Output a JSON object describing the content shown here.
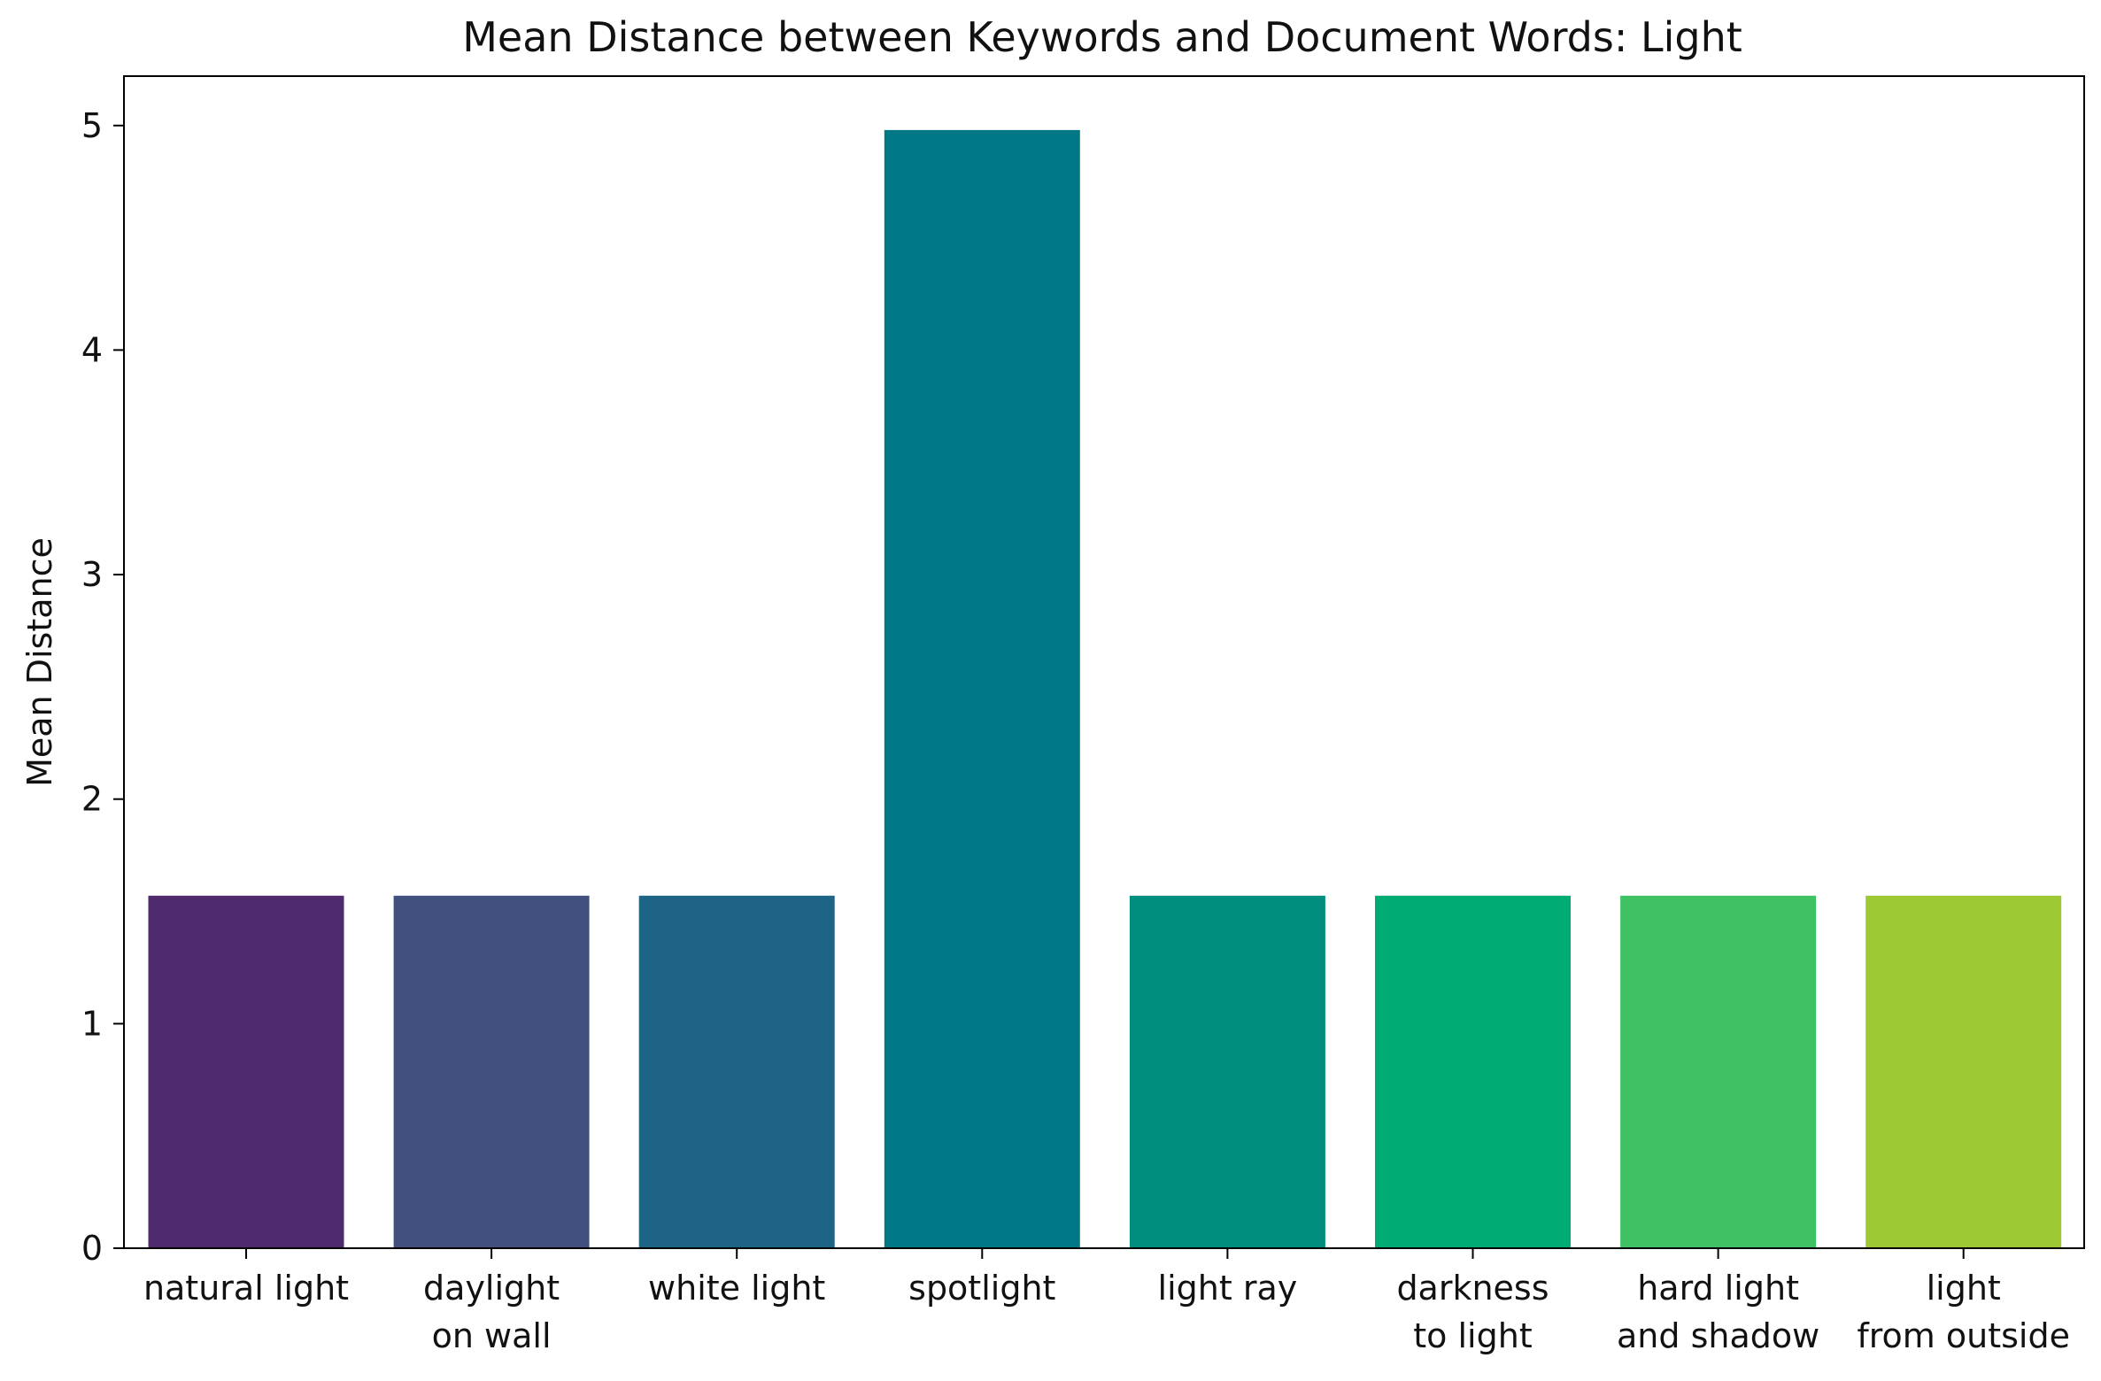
{
  "chart_data": {
    "type": "bar",
    "title": "Mean Distance between Keywords and Document Words: Light",
    "xlabel": "",
    "ylabel": "Mean Distance",
    "ylim": [
      0,
      5.22
    ],
    "yticks": [
      0,
      1,
      2,
      3,
      4,
      5
    ],
    "grid": false,
    "legend": "none",
    "categories": [
      [
        "natural light"
      ],
      [
        "daylight",
        "on wall"
      ],
      [
        "white light"
      ],
      [
        "spotlight"
      ],
      [
        "light ray"
      ],
      [
        "darkness",
        "to light"
      ],
      [
        "hard light",
        "and shadow"
      ],
      [
        "light",
        "from outside"
      ]
    ],
    "values": [
      1.57,
      1.57,
      1.57,
      4.98,
      1.57,
      1.57,
      1.57,
      1.57
    ],
    "colors": [
      "#4f2b6e",
      "#42507f",
      "#1e6486",
      "#007784",
      "#008f7f",
      "#00ac74",
      "#3fc264",
      "#9cc833"
    ]
  }
}
